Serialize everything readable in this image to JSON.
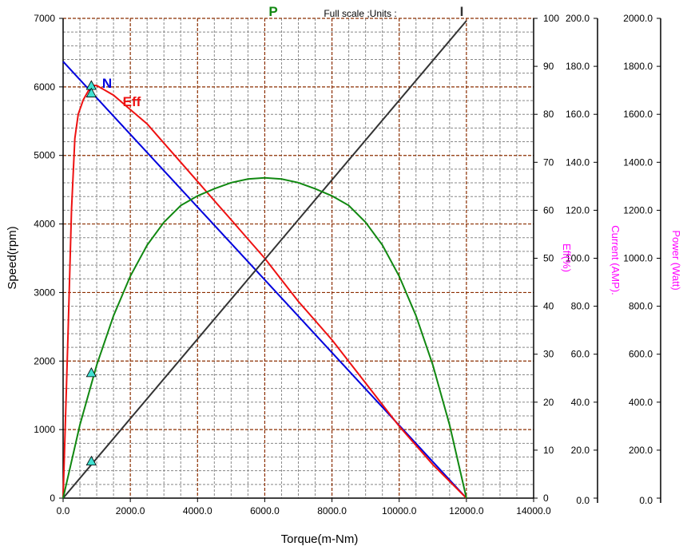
{
  "chart_data": {
    "type": "line",
    "header_text": "Full scale ;Units :",
    "xlabel": "Torque(m-Nm)",
    "xlim": [
      0,
      14000
    ],
    "x_ticks": [
      "0.0",
      "2000.0",
      "4000.0",
      "6000.0",
      "8000.0",
      "10000.0",
      "12000.0",
      "14000.0"
    ],
    "ylabel": "Speed(rpm)",
    "ylim": [
      0,
      7000
    ],
    "y_ticks": [
      "0",
      "1000",
      "2000",
      "3000",
      "4000",
      "5000",
      "6000",
      "7000"
    ],
    "right_axes": [
      {
        "label": "Eff(%)",
        "range": [
          0,
          100
        ],
        "ticks": [
          "0",
          "10",
          "20",
          "30",
          "40",
          "50",
          "60",
          "70",
          "80",
          "90",
          "100"
        ]
      },
      {
        "label": "Current (AMP).",
        "range": [
          0,
          200
        ],
        "ticks": [
          "0.0",
          "20.0",
          "40.0",
          "60.0",
          "80.0",
          "100.0",
          "120.0",
          "140.0",
          "160.0",
          "180.0",
          "200.0"
        ]
      },
      {
        "label": "Power (Watt)",
        "range": [
          0,
          2000
        ],
        "ticks": [
          "0.0",
          "200.0",
          "400.0",
          "600.0",
          "800.0",
          "1000.0",
          "1200.0",
          "1400.0",
          "1600.0",
          "1800.0",
          "2000.0"
        ]
      }
    ],
    "grid": true,
    "series": [
      {
        "name": "N",
        "color": "#0000dd",
        "axis": "Speed(rpm)",
        "x": [
          0,
          12000
        ],
        "y": [
          6370,
          0
        ]
      },
      {
        "name": "Eff",
        "color": "#ee1111",
        "axis": "Eff(%)",
        "x": [
          0,
          150,
          250,
          350,
          450,
          600,
          840,
          1000,
          1500,
          2000,
          2500,
          3000,
          3500,
          4000,
          4500,
          5000,
          5500,
          6000,
          7000,
          8000,
          9000,
          10000,
          11000,
          12000
        ],
        "y": [
          0,
          35,
          60,
          75,
          80,
          83,
          86,
          86,
          84,
          81,
          78,
          74,
          70,
          66,
          62,
          58,
          54,
          50,
          41,
          33,
          24,
          15,
          7,
          0
        ]
      },
      {
        "name": "I",
        "color": "#333333",
        "axis": "Current (AMP).",
        "x": [
          0,
          12000
        ],
        "y": [
          0,
          199
        ]
      },
      {
        "name": "P",
        "color": "#118811",
        "axis": "Power (Watt)",
        "x": [
          0,
          500,
          1000,
          1500,
          2000,
          2500,
          3000,
          3500,
          4000,
          4500,
          5000,
          5500,
          6000,
          6500,
          7000,
          7500,
          8000,
          8500,
          9000,
          9500,
          10000,
          10500,
          11000,
          11500,
          12000
        ],
        "y": [
          0,
          305,
          555,
          760,
          925,
          1055,
          1150,
          1220,
          1260,
          1290,
          1315,
          1330,
          1335,
          1330,
          1315,
          1290,
          1260,
          1220,
          1150,
          1055,
          925,
          760,
          555,
          305,
          0
        ]
      }
    ],
    "markers": [
      {
        "series": "N",
        "x": 840,
        "y": 6020
      },
      {
        "series": "Eff",
        "x": 840,
        "y": 5910
      },
      {
        "series": "P",
        "x": 840,
        "y": 1830
      },
      {
        "series": "I",
        "x": 840,
        "y": 540
      }
    ],
    "curve_labels": [
      "N",
      "Eff",
      "P",
      "I"
    ],
    "colors": {
      "major_grid": "#8b2e00",
      "minor_grid": "#888888",
      "secondary_axis_title": "#ff00ff",
      "marker": "#40e0d0"
    }
  }
}
